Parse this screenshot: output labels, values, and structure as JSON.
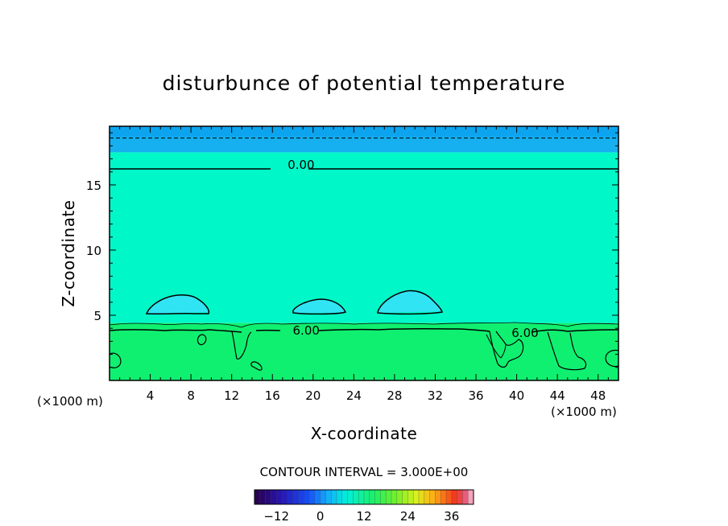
{
  "chart_data": {
    "type": "contour",
    "title": "disturbunce of potential temperature",
    "xlabel": "X-coordinate",
    "ylabel": "Z-coordinate",
    "x_unit_left": "(×1000 m)",
    "x_unit_right": "(×1000 m)",
    "xlim": [
      0,
      50
    ],
    "ylim": [
      0,
      19.5
    ],
    "x_ticks": [
      4,
      8,
      12,
      16,
      20,
      24,
      28,
      32,
      36,
      40,
      44,
      48
    ],
    "x_tick_labels": [
      "4",
      "8",
      "12",
      "16",
      "20",
      "24",
      "28",
      "32",
      "36",
      "40",
      "44",
      "48"
    ],
    "y_ticks": [
      5,
      10,
      15
    ],
    "y_tick_labels": [
      "5",
      "10",
      "15"
    ],
    "contour_interval_text": "CONTOUR INTERVAL = 3.000E+00",
    "contour_labels": [
      {
        "text": "0.00",
        "x": 17.5,
        "z": 16.6
      },
      {
        "text": "6.00",
        "x": 18.0,
        "z": 3.9
      },
      {
        "text": "6.00",
        "x": 39.5,
        "z": 3.7
      }
    ],
    "regions": [
      {
        "name": "upper",
        "z_from": 17.5,
        "z_to": 19.5,
        "color": "#16b0f0"
      },
      {
        "name": "middle",
        "z_from": 4.4,
        "z_to": 17.5,
        "color": "#00f8c8"
      },
      {
        "name": "lower",
        "z_from": 0,
        "z_to": 4.4,
        "color": "#10f070"
      }
    ],
    "lines": [
      {
        "style": "dashed",
        "z": 18.6
      },
      {
        "style": "solid",
        "z": 16.6
      }
    ],
    "colorbar": {
      "min": -18,
      "max": 42,
      "step": 1.5,
      "tick_values": [
        -12,
        0,
        12,
        24,
        36
      ],
      "tick_labels": [
        "−12",
        "0",
        "12",
        "24",
        "36"
      ]
    }
  }
}
